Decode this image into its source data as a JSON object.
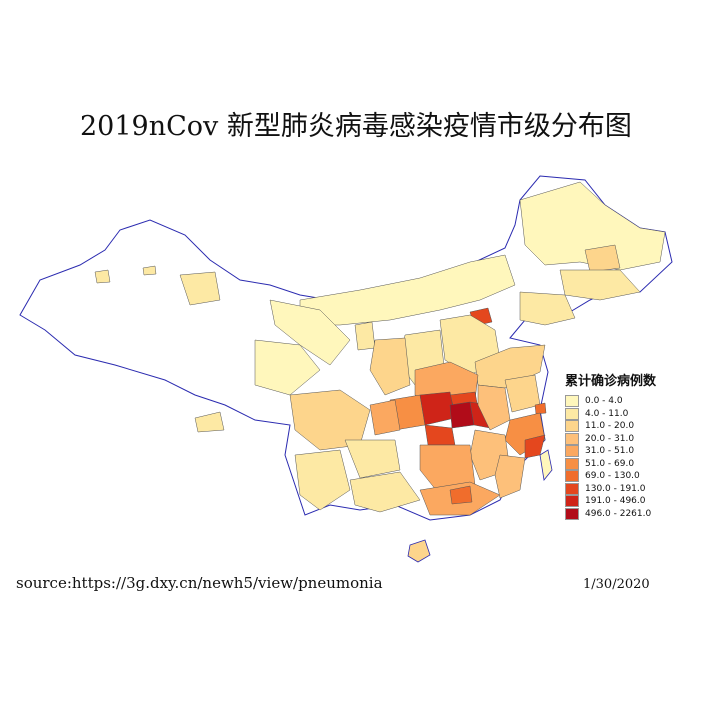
{
  "title": "2019nCov 新型肺炎病毒感染疫情市级分布图",
  "legend": {
    "title": "累计确诊病例数",
    "bins": [
      {
        "label": "0.0 - 4.0",
        "color": "#fff7bc"
      },
      {
        "label": "4.0 - 11.0",
        "color": "#fde9a4"
      },
      {
        "label": "11.0 - 20.0",
        "color": "#fdd58c"
      },
      {
        "label": "20.0 - 31.0",
        "color": "#fdc07a"
      },
      {
        "label": "31.0 - 51.0",
        "color": "#fba860"
      },
      {
        "label": "51.0 - 69.0",
        "color": "#f78f44"
      },
      {
        "label": "69.0 - 130.0",
        "color": "#f06d2c"
      },
      {
        "label": "130.0 - 191.0",
        "color": "#e4471e"
      },
      {
        "label": "191.0 - 496.0",
        "color": "#cf2418"
      },
      {
        "label": "496.0 - 2261.0",
        "color": "#b10c19"
      }
    ]
  },
  "source": "source:https://3g.dxy.cn/newh5/view/pneumonia",
  "date": "1/30/2020",
  "colors": {
    "province_border": "#2b2bb0",
    "city_border": "#555555",
    "no_data": "#ffffff"
  }
}
